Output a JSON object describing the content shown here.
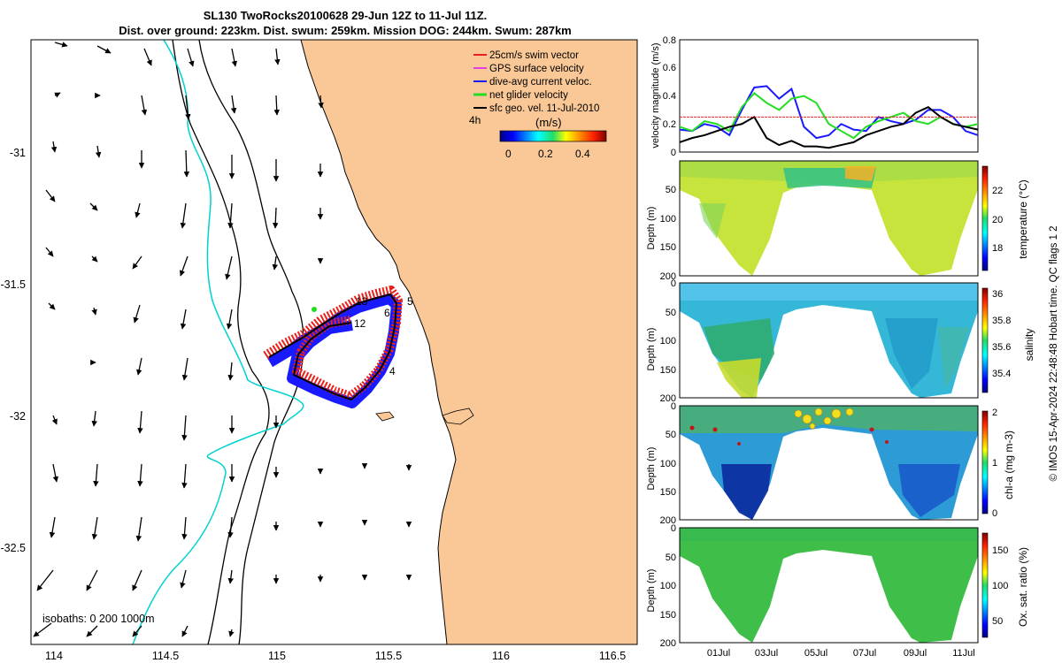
{
  "header": {
    "title_line1": "SL130 TwoRocks20100628 29-Jun 12Z to 11-Jul 11Z.",
    "title_line2": "Dist. over ground: 223km. Dist. swum: 259km. Mission DOG: 244km. Swum: 287km"
  },
  "map": {
    "land_color": "#f9c896",
    "legend": [
      {
        "label": "25cm/s swim vector",
        "color": "#e8211c"
      },
      {
        "label": "GPS surface velocity",
        "color": "#e040e0"
      },
      {
        "label": "dive-avg current veloc.",
        "color": "#1a1aff"
      },
      {
        "label": "net glider velocity",
        "color": "#22dd22"
      },
      {
        "label": "sfc geo. vel. 11-Jul-2010",
        "color": "#000000"
      }
    ],
    "legend_4h": "4h",
    "colorbar": {
      "label": "(m/s)",
      "ticks": [
        "0",
        "0.2",
        "0.4"
      ]
    },
    "isobath_label": "isobaths: 0   200  1000m",
    "lon_ticks": [
      "114",
      "114.5",
      "115",
      "115.5",
      "116",
      "116.5"
    ],
    "lat_ticks": [
      "-31",
      "-31.5",
      "-32",
      "-32.5"
    ],
    "day_labels": [
      "13",
      "5",
      "6",
      "12",
      "4"
    ]
  },
  "chart_data": [
    {
      "type": "line",
      "title": "",
      "ylabel": "velocity magnitude (m/s)",
      "ylim": [
        0,
        0.8
      ],
      "yticks": [
        "0",
        "0.2",
        "0.4",
        "0.6",
        "0.8"
      ],
      "x": [
        0,
        0.5,
        1,
        1.5,
        2,
        2.5,
        3,
        3.5,
        4,
        4.5,
        5,
        5.5,
        6,
        6.5,
        7,
        7.5,
        8,
        8.5,
        9,
        9.5,
        10,
        10.5,
        11,
        11.5,
        12
      ],
      "series": [
        {
          "name": "dive-avg current veloc.",
          "color": "#1a1aff",
          "values": [
            0.16,
            0.15,
            0.2,
            0.18,
            0.12,
            0.3,
            0.46,
            0.47,
            0.38,
            0.45,
            0.18,
            0.1,
            0.12,
            0.2,
            0.16,
            0.15,
            0.25,
            0.22,
            0.2,
            0.23,
            0.3,
            0.3,
            0.25,
            0.15,
            0.12
          ]
        },
        {
          "name": "net glider velocity",
          "color": "#22dd22",
          "values": [
            0.18,
            0.15,
            0.22,
            0.2,
            0.15,
            0.32,
            0.42,
            0.35,
            0.3,
            0.38,
            0.4,
            0.35,
            0.2,
            0.15,
            0.1,
            0.18,
            0.22,
            0.25,
            0.28,
            0.22,
            0.2,
            0.25,
            0.2,
            0.18,
            0.2
          ]
        },
        {
          "name": "sfc geo. vel.",
          "color": "#000000",
          "values": [
            0.07,
            0.1,
            0.12,
            0.15,
            0.18,
            0.2,
            0.25,
            0.1,
            0.05,
            0.08,
            0.04,
            0.04,
            0.03,
            0.05,
            0.07,
            0.12,
            0.15,
            0.18,
            0.2,
            0.28,
            0.32,
            0.25,
            0.2,
            0.18,
            0.16
          ]
        },
        {
          "name": "25cm/s swim vector",
          "color": "#e8211c",
          "values": [
            0.25,
            0.25,
            0.25,
            0.25,
            0.25,
            0.25,
            0.25,
            0.25,
            0.25,
            0.25,
            0.25,
            0.25,
            0.25,
            0.25,
            0.25,
            0.25,
            0.25,
            0.25,
            0.25,
            0.25,
            0.25,
            0.25,
            0.25,
            0.25,
            0.25
          ]
        }
      ]
    },
    {
      "type": "heatmap",
      "ylabel": "Depth (m)",
      "colorbar_label": "temperature (°C)",
      "ylim": [
        200,
        0
      ],
      "yticks": [
        "50",
        "100",
        "150",
        "200"
      ],
      "cticks": [
        "18",
        "20",
        "22"
      ],
      "clim": [
        16.5,
        24
      ]
    },
    {
      "type": "heatmap",
      "ylabel": "Depth (m)",
      "colorbar_label": "salinity",
      "ylim": [
        200,
        0
      ],
      "yticks": [
        "0",
        "50",
        "100",
        "150",
        "200"
      ],
      "cticks": [
        "35.4",
        "35.6",
        "35.8",
        "36"
      ],
      "clim": [
        35.3,
        36.1
      ]
    },
    {
      "type": "heatmap",
      "ylabel": "Depth (m)",
      "colorbar_label": "chl-a (mg m-3)",
      "ylim": [
        200,
        0
      ],
      "yticks": [
        "0",
        "50",
        "100",
        "150",
        "200"
      ],
      "cticks": [
        "0",
        "1",
        "2"
      ],
      "clim": [
        0,
        2
      ]
    },
    {
      "type": "heatmap",
      "ylabel": "Depth (m)",
      "colorbar_label": "Ox. sat. ratio (%)",
      "ylim": [
        200,
        0
      ],
      "yticks": [
        "0",
        "50",
        "100",
        "150",
        "200"
      ],
      "cticks": [
        "50",
        "100",
        "150"
      ],
      "clim": [
        20,
        175
      ],
      "xticks": [
        "01Jul",
        "03Jul",
        "05Jul",
        "07Jul",
        "09Jul",
        "11Jul"
      ]
    }
  ],
  "side_note": "© IMOS 15-Apr-2024 22:48:48 Hobart time. QC flags 1  2"
}
